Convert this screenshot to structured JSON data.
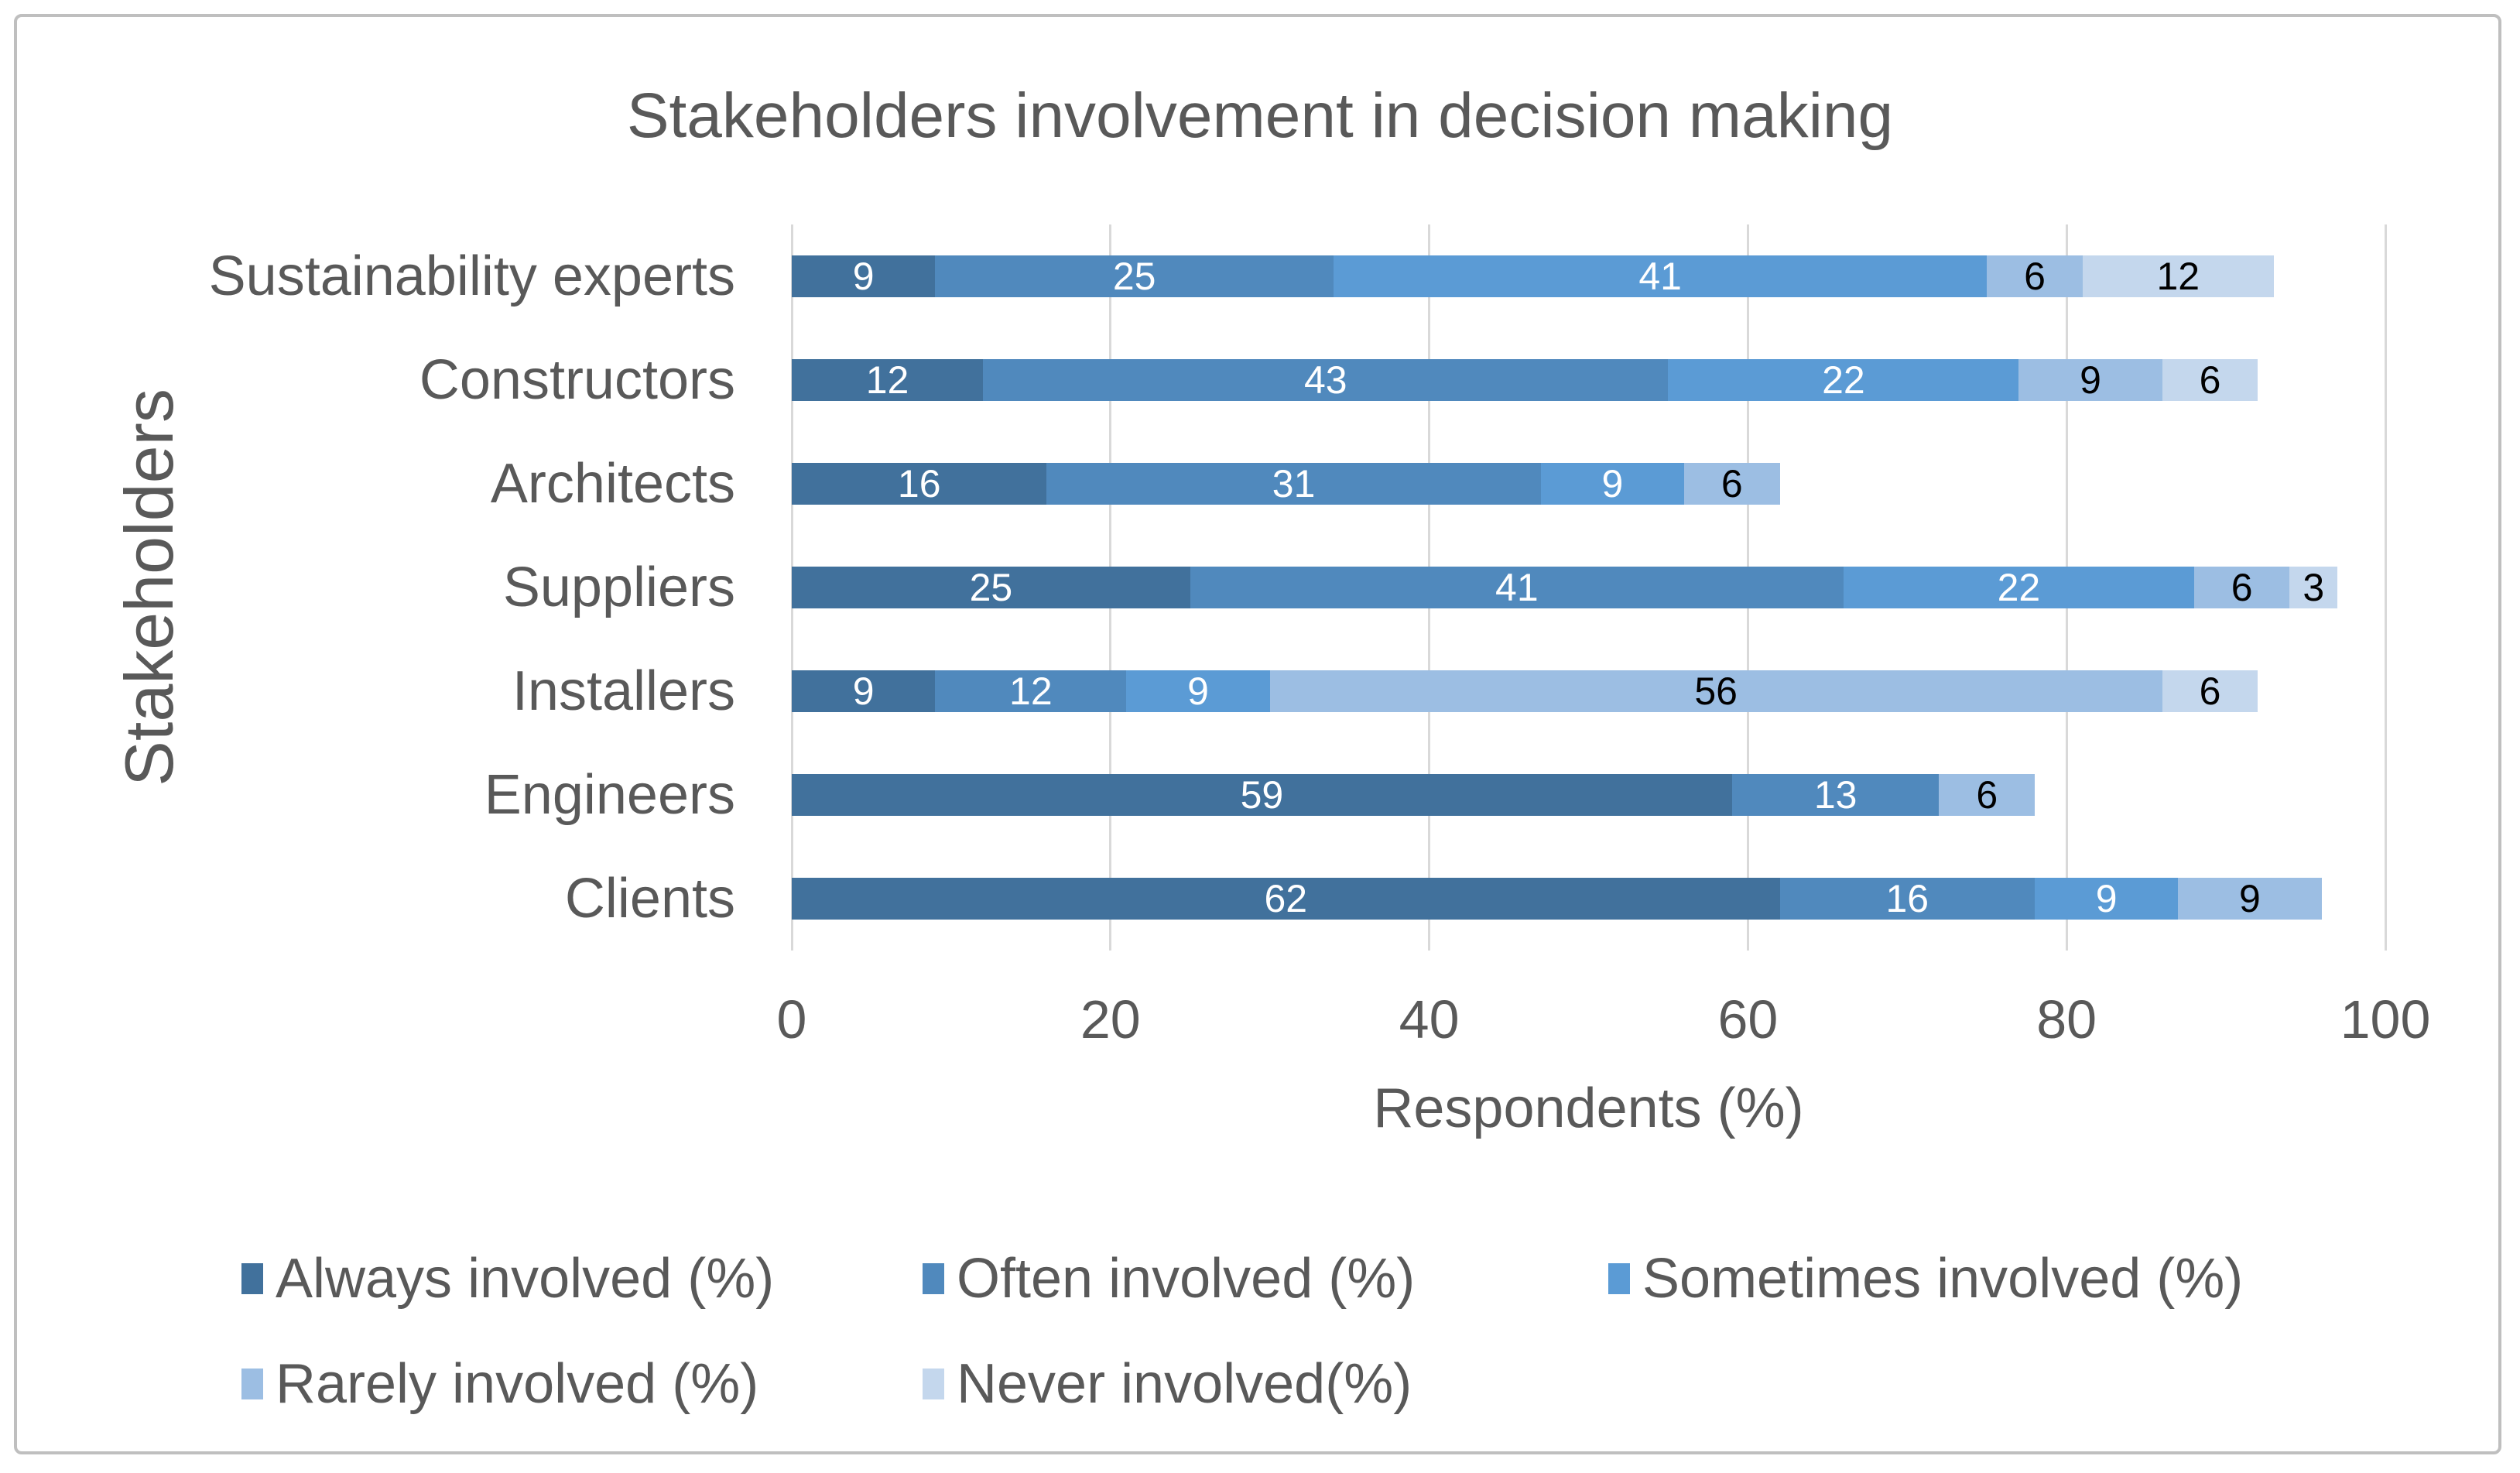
{
  "title": "Stakeholders involvement in decision making",
  "x_axis": {
    "label": "Respondents (%)",
    "ticks": [
      0,
      20,
      40,
      60,
      80,
      100
    ],
    "min": 0,
    "max": 100
  },
  "y_axis": {
    "label": "Stakeholders"
  },
  "colors": {
    "frame_border": "#BFBFBF",
    "gridline": "#D9D9D9",
    "text": "#595959",
    "label_on_dark": "#FFFFFF",
    "label_on_light": "#000000"
  },
  "chart_data": {
    "type": "bar",
    "orientation": "horizontal",
    "stacked": true,
    "title": "Stakeholders involvement in decision making",
    "xlabel": "Respondents (%)",
    "ylabel": "Stakeholders",
    "xlim": [
      0,
      100
    ],
    "grid": "vertical",
    "legend_position": "bottom",
    "categories": [
      "Sustainability experts",
      "Constructors",
      "Architects",
      "Suppliers",
      "Installers",
      "Engineers",
      "Clients"
    ],
    "series": [
      {
        "name": "Always involved (%)",
        "color": "#41719C",
        "label_color": "#FFFFFF",
        "values": [
          9,
          12,
          16,
          25,
          9,
          59,
          62
        ]
      },
      {
        "name": "Often involved (%)",
        "color": "#5089BD",
        "label_color": "#FFFFFF",
        "values": [
          25,
          43,
          31,
          41,
          12,
          13,
          16
        ]
      },
      {
        "name": "Sometimes involved (%)",
        "color": "#5B9BD5",
        "label_color": "#FFFFFF",
        "values": [
          41,
          22,
          9,
          22,
          9,
          0,
          9
        ]
      },
      {
        "name": "Rarely involved (%)",
        "color": "#9CBEE3",
        "label_color": "#000000",
        "values": [
          6,
          9,
          6,
          6,
          56,
          6,
          9
        ]
      },
      {
        "name": "Never involved(%)",
        "color": "#C4D7ED",
        "label_color": "#000000",
        "values": [
          12,
          6,
          0,
          3,
          6,
          0,
          0
        ]
      }
    ]
  }
}
